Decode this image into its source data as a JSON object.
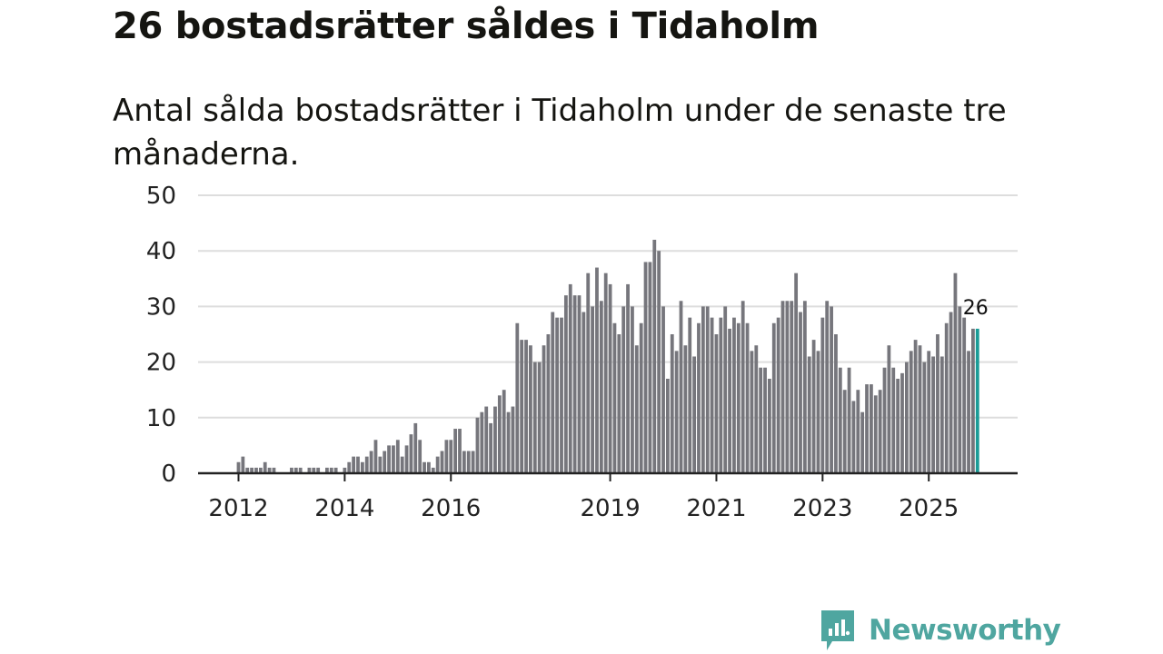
{
  "header": {
    "title": "26 bostadsrätter såldes i Tidaholm",
    "subtitle": "Antal sålda bostadsrätter i Tidaholm under de senaste tre månaderna."
  },
  "brand": {
    "name": "Newsworthy",
    "color": "#4fa6a0",
    "logo_icon": "bar-chart-bubble-icon"
  },
  "colors": {
    "bar": "#76767c",
    "highlight": "#1a9c97",
    "grid": "#dddddd",
    "axis": "#222222"
  },
  "chart_data": {
    "type": "bar",
    "title": "26 bostadsrätter såldes i Tidaholm",
    "subtitle": "Antal sålda bostadsrätter i Tidaholm under de senaste tre månaderna.",
    "xlabel": "",
    "ylabel": "",
    "ylim": [
      0,
      50
    ],
    "yticks": [
      0,
      10,
      20,
      30,
      40,
      50
    ],
    "grid": true,
    "start": {
      "year": 2012,
      "month": 1
    },
    "frequency": "monthly (rolling three-month total)",
    "xticks": [
      {
        "label": "2012",
        "year": 2012,
        "month": 1
      },
      {
        "label": "2014",
        "year": 2014,
        "month": 1
      },
      {
        "label": "2016",
        "year": 2016,
        "month": 1
      },
      {
        "label": "2019",
        "year": 2019,
        "month": 1
      },
      {
        "label": "2021",
        "year": 2021,
        "month": 1
      },
      {
        "label": "2023",
        "year": 2023,
        "month": 1
      },
      {
        "label": "2025",
        "year": 2025,
        "month": 1
      }
    ],
    "annotation": {
      "text": "26",
      "target": "last"
    },
    "values": [
      2,
      3,
      1,
      1,
      1,
      1,
      2,
      1,
      1,
      0,
      0,
      0,
      1,
      1,
      1,
      0,
      1,
      1,
      1,
      0,
      1,
      1,
      1,
      0,
      1,
      2,
      3,
      3,
      2,
      3,
      4,
      6,
      3,
      4,
      5,
      5,
      6,
      3,
      5,
      7,
      9,
      6,
      2,
      2,
      1,
      3,
      4,
      6,
      6,
      8,
      8,
      4,
      4,
      4,
      10,
      11,
      12,
      9,
      12,
      14,
      15,
      11,
      12,
      27,
      24,
      24,
      23,
      20,
      20,
      23,
      25,
      29,
      28,
      28,
      32,
      34,
      32,
      32,
      29,
      36,
      30,
      37,
      31,
      36,
      34,
      27,
      25,
      30,
      34,
      30,
      23,
      27,
      38,
      38,
      42,
      40,
      30,
      17,
      25,
      22,
      31,
      23,
      28,
      21,
      27,
      30,
      30,
      28,
      25,
      28,
      30,
      26,
      28,
      27,
      31,
      27,
      22,
      23,
      19,
      19,
      17,
      27,
      28,
      31,
      31,
      31,
      36,
      29,
      31,
      21,
      24,
      22,
      28,
      31,
      30,
      25,
      19,
      15,
      19,
      13,
      15,
      11,
      16,
      16,
      14,
      15,
      19,
      23,
      19,
      17,
      18,
      20,
      22,
      24,
      23,
      20,
      22,
      21,
      25,
      21,
      27,
      29,
      36,
      30,
      28,
      22,
      26,
      26
    ]
  }
}
